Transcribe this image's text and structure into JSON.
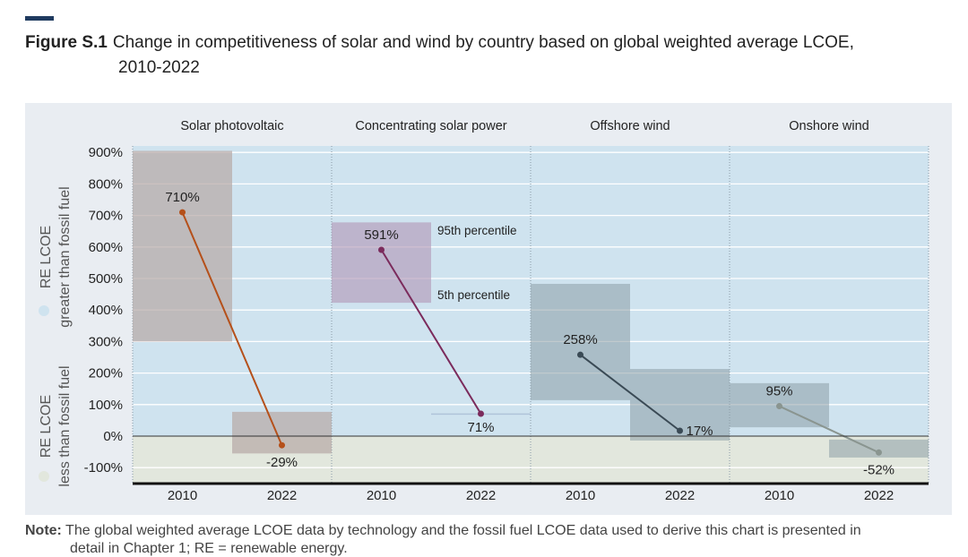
{
  "figure_label": "Figure S.1",
  "title_line1": "Change in competitiveness of solar and wind by country based on global weighted average LCOE,",
  "title_line2": "2010-2022",
  "note_label": "Note:",
  "note_text": "The global weighted average LCOE data by technology and the fossil fuel LCOE data used to derive this chart is presented in",
  "note_text2": "detail in Chapter 1; RE = renewable energy.",
  "chart_data": {
    "type": "line",
    "title": "Change in competitiveness of solar and wind by country based on global weighted average LCOE, 2010-2022",
    "ylim": [
      -100,
      900
    ],
    "yticks": [
      "900%",
      "800%",
      "700%",
      "600%",
      "500%",
      "400%",
      "300%",
      "200%",
      "100%",
      "0%",
      "-100%"
    ],
    "ytick_values": [
      900,
      800,
      700,
      600,
      500,
      400,
      300,
      200,
      100,
      0,
      -100
    ],
    "ylabel_upper": [
      "RE LCOE",
      "greater than fossil fuel"
    ],
    "ylabel_lower": [
      "RE LCOE",
      "less than fossil fuel"
    ],
    "annotations": {
      "p95": "95th percentile",
      "p5": "5th percentile"
    },
    "groups": [
      {
        "name": "Solar photovoltaic",
        "color": "#b5501a",
        "x": [
          "2010",
          "2022"
        ],
        "values": [
          710,
          -29
        ],
        "labels": [
          "710%",
          "-29%"
        ],
        "p5": [
          300,
          -55
        ],
        "p95": [
          905,
          77
        ]
      },
      {
        "name": "Concentrating solar power",
        "color": "#7b2b5c",
        "x": [
          "2010",
          "2022"
        ],
        "values": [
          591,
          71
        ],
        "labels": [
          "591%",
          "71%"
        ],
        "p5": [
          423,
          70
        ],
        "p95": [
          678,
          72
        ]
      },
      {
        "name": "Offshore wind",
        "color": "#3a4a55",
        "x": [
          "2010",
          "2022"
        ],
        "values": [
          258,
          17
        ],
        "labels": [
          "258%",
          "17%"
        ],
        "p5": [
          114,
          -14
        ],
        "p95": [
          483,
          213
        ]
      },
      {
        "name": "Onshore wind",
        "color": "#8a9590",
        "x": [
          "2010",
          "2022"
        ],
        "values": [
          95,
          -52
        ],
        "labels": [
          "95%",
          "-52%"
        ],
        "p5": [
          28,
          -68
        ],
        "p95": [
          168,
          -11
        ]
      }
    ]
  }
}
